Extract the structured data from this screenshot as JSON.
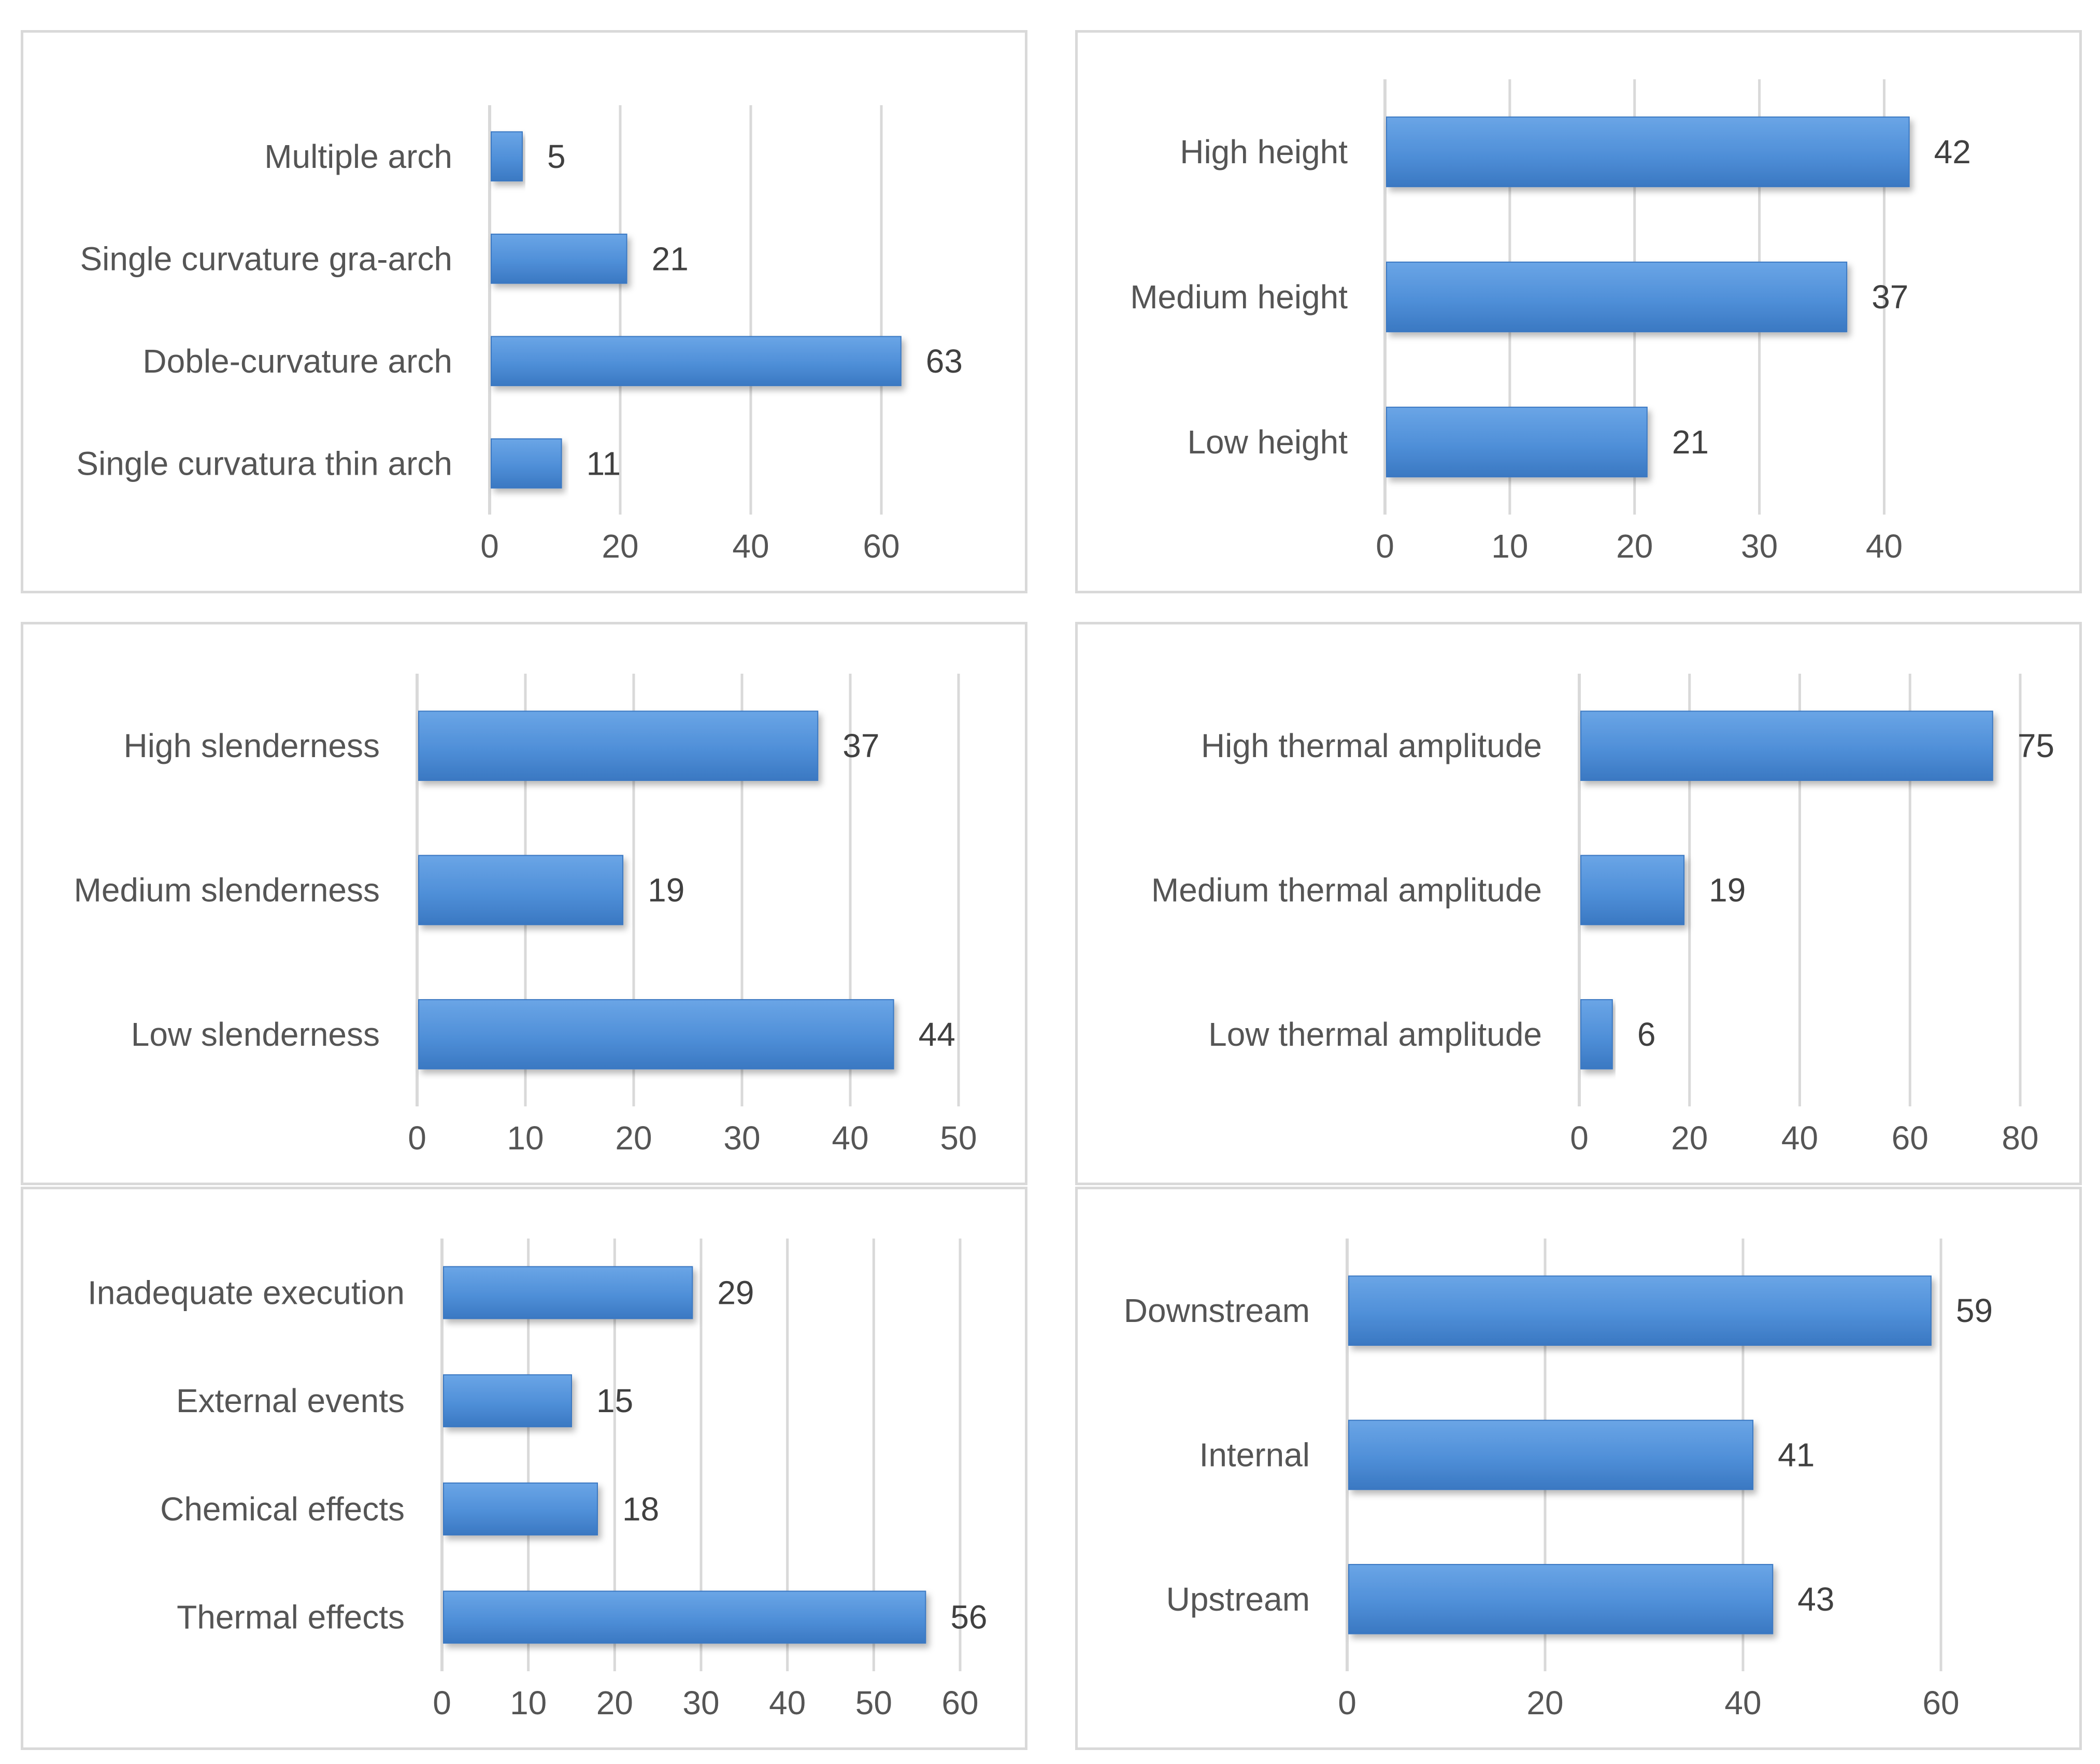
{
  "colors": {
    "bar": "#4f8fd8",
    "bar_dark": "#3a78c2",
    "grid": "#d9d9d9",
    "text": "#555555"
  },
  "chart_data": [
    {
      "type": "bar",
      "orientation": "horizontal",
      "title": "",
      "categories": [
        "Multiple arch",
        "Single curvature gra-arch",
        "Doble-curvature arch",
        "Single curvatura thin arch"
      ],
      "values": [
        5,
        21,
        63,
        11
      ],
      "xlim": [
        0,
        70
      ],
      "ticks": [
        0,
        20,
        40,
        60
      ]
    },
    {
      "type": "bar",
      "orientation": "horizontal",
      "title": "",
      "categories": [
        "High height",
        "Medium height",
        "Low height"
      ],
      "values": [
        42,
        37,
        21
      ],
      "xlim": [
        0,
        46
      ],
      "ticks": [
        0,
        10,
        20,
        30,
        40
      ]
    },
    {
      "type": "bar",
      "orientation": "horizontal",
      "title": "",
      "categories": [
        "High slenderness",
        "Medium slenderness",
        "Low slenderness"
      ],
      "values": [
        37,
        19,
        44
      ],
      "xlim": [
        0,
        50
      ],
      "ticks": [
        0,
        10,
        20,
        30,
        40,
        50
      ]
    },
    {
      "type": "bar",
      "orientation": "horizontal",
      "title": "",
      "categories": [
        "High thermal amplitude",
        "Medium thermal amplitude",
        "Low thermal amplitude"
      ],
      "values": [
        75,
        19,
        6
      ],
      "xlim": [
        0,
        80
      ],
      "ticks": [
        0,
        20,
        40,
        60,
        80
      ]
    },
    {
      "type": "bar",
      "orientation": "horizontal",
      "title": "",
      "categories": [
        "Inadequate execution",
        "External events",
        "Chemical effects",
        "Thermal effects"
      ],
      "values": [
        29,
        15,
        18,
        56
      ],
      "xlim": [
        0,
        60
      ],
      "ticks": [
        0,
        10,
        20,
        30,
        40,
        50,
        60
      ]
    },
    {
      "type": "bar",
      "orientation": "horizontal",
      "title": "",
      "categories": [
        "Downstream",
        "Internal",
        "Upstream"
      ],
      "values": [
        59,
        41,
        43
      ],
      "xlim": [
        0,
        60
      ],
      "ticks": [
        0,
        20,
        40,
        60
      ]
    }
  ]
}
